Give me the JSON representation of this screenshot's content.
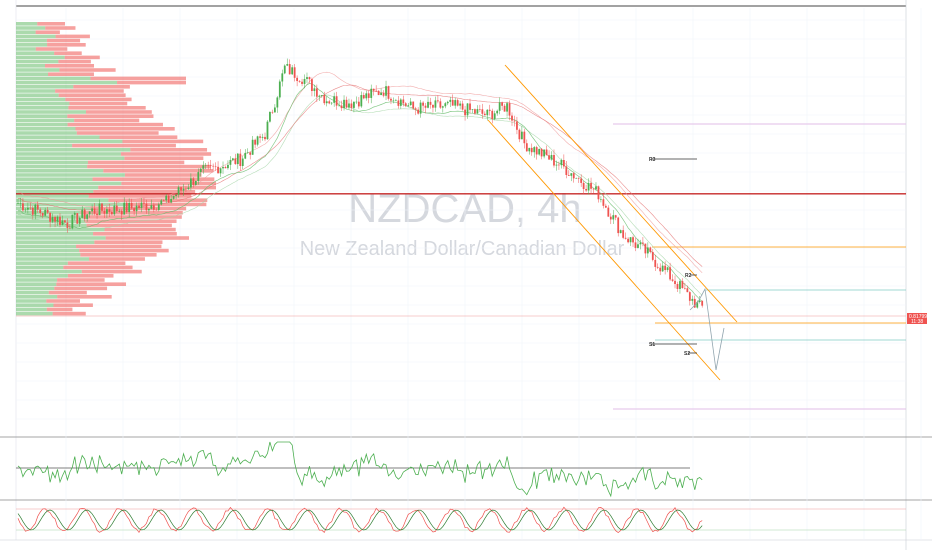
{
  "watermark": {
    "symbol": "NZDCAD, 4h",
    "name": "New Zealand Dollar/Canadian Dollar"
  },
  "annotations": {
    "r3": "R3",
    "r2": "R2",
    "s1": "S1",
    "s2": "S2"
  },
  "price_tag": {
    "value": "0.81799",
    "countdown": "11:38"
  },
  "colors": {
    "up_candle": "#4caf50",
    "down_candle": "#ef5350",
    "horizontal_level": "#c62828",
    "channel": "#ff9800",
    "r3_line": "#e1bee7",
    "sr_green": "#80cbc4",
    "rsi_line": "#4caf50",
    "grid": "#f0f3fa"
  },
  "chart_data": {
    "type": "candlestick",
    "symbol": "NZDCAD",
    "timeframe": "4h",
    "title": "",
    "xlabel": "",
    "ylabel": "",
    "price_path_key_points": [
      {
        "bar": 0,
        "price": 0.841
      },
      {
        "bar": 10,
        "price": 0.8395
      },
      {
        "bar": 20,
        "price": 0.8378
      },
      {
        "bar": 30,
        "price": 0.8398
      },
      {
        "bar": 45,
        "price": 0.8402
      },
      {
        "bar": 60,
        "price": 0.8412
      },
      {
        "bar": 75,
        "price": 0.846
      },
      {
        "bar": 90,
        "price": 0.848
      },
      {
        "bar": 100,
        "price": 0.852
      },
      {
        "bar": 108,
        "price": 0.8625
      },
      {
        "bar": 115,
        "price": 0.861
      },
      {
        "bar": 125,
        "price": 0.8575
      },
      {
        "bar": 135,
        "price": 0.857
      },
      {
        "bar": 148,
        "price": 0.859
      },
      {
        "bar": 160,
        "price": 0.856
      },
      {
        "bar": 175,
        "price": 0.8565
      },
      {
        "bar": 190,
        "price": 0.855
      },
      {
        "bar": 198,
        "price": 0.8565
      },
      {
        "bar": 205,
        "price": 0.8505
      },
      {
        "bar": 220,
        "price": 0.847
      },
      {
        "bar": 235,
        "price": 0.8425
      },
      {
        "bar": 245,
        "price": 0.836
      },
      {
        "bar": 255,
        "price": 0.833
      },
      {
        "bar": 265,
        "price": 0.829
      },
      {
        "bar": 272,
        "price": 0.826
      },
      {
        "bar": 276,
        "price": 0.8245
      }
    ],
    "horizontal_levels": {
      "key_level": 0.8425,
      "r3": 0.85,
      "orange_level": 0.8343,
      "current_price": 0.818
    },
    "indicators": [
      "Volume Profile",
      "RSI",
      "Stochastic"
    ]
  }
}
